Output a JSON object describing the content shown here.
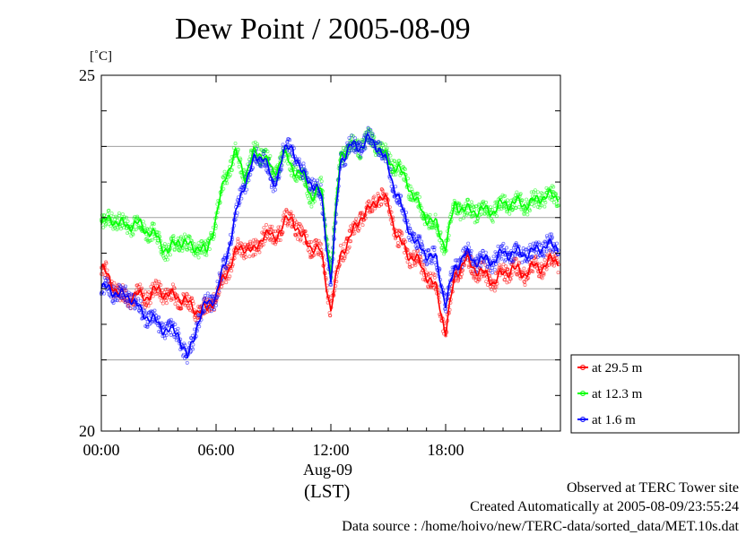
{
  "header": {
    "title": "Dew Point / 2005-08-09",
    "unit": "[˚C]"
  },
  "axis": {
    "date_label": "Aug-09",
    "timezone_label": "(LST)"
  },
  "footer": {
    "line1": "Observed at TERC Tower site",
    "line2": "Created Automatically at 2005-08-09/23:55:24",
    "line3": "Data source : /home/hoivo/new/TERC-data/sorted_data/MET.10s.dat"
  },
  "chart_data": {
    "type": "line",
    "xlabel": "",
    "ylabel": "[˚C]",
    "xlim": [
      0,
      24
    ],
    "ylim": [
      20,
      25
    ],
    "x_ticks": [
      0,
      6,
      12,
      18
    ],
    "x_tick_labels": [
      "00:00",
      "06:00",
      "12:00",
      "18:00"
    ],
    "y_ticks": [
      20,
      25
    ],
    "y_tick_labels": [
      "20",
      "25"
    ],
    "grid_y": [
      21,
      22,
      23,
      24
    ],
    "legend_position": "bottom-right outside",
    "x": [
      0,
      0.5,
      1,
      1.5,
      2,
      2.5,
      3,
      3.5,
      4,
      4.5,
      5,
      5.5,
      6,
      6.5,
      7,
      7.5,
      8,
      8.5,
      9,
      9.5,
      10,
      10.5,
      11,
      11.5,
      12,
      12.5,
      13,
      13.5,
      14,
      14.5,
      15,
      15.5,
      16,
      16.5,
      17,
      17.5,
      18,
      18.5,
      19,
      19.5,
      20,
      20.5,
      21,
      21.5,
      22,
      22.5,
      23,
      23.5
    ],
    "series": [
      {
        "name": "at 29.5 m",
        "color": "#ff0000",
        "values": [
          22.3,
          22.1,
          21.9,
          21.9,
          21.9,
          21.9,
          22.0,
          21.9,
          21.9,
          21.8,
          21.7,
          21.7,
          21.9,
          22.2,
          22.5,
          22.6,
          22.5,
          22.8,
          22.7,
          22.9,
          23.0,
          22.7,
          22.6,
          22.5,
          21.7,
          22.5,
          22.7,
          23.0,
          23.1,
          23.3,
          23.2,
          22.7,
          22.5,
          22.4,
          22.2,
          22.0,
          21.4,
          22.2,
          22.4,
          22.3,
          22.2,
          22.1,
          22.2,
          22.3,
          22.2,
          22.3,
          22.3,
          22.4
        ]
      },
      {
        "name": "at 12.3 m",
        "color": "#00ff00",
        "values": [
          22.9,
          23.0,
          22.9,
          22.9,
          22.9,
          22.8,
          22.7,
          22.5,
          22.7,
          22.6,
          22.6,
          22.5,
          23.0,
          23.6,
          23.9,
          23.6,
          23.9,
          23.9,
          23.6,
          23.9,
          23.7,
          23.6,
          23.3,
          23.4,
          22.2,
          23.9,
          24.0,
          24.0,
          24.1,
          24.0,
          23.8,
          23.7,
          23.5,
          23.2,
          23.0,
          22.9,
          22.6,
          23.2,
          23.1,
          23.1,
          23.1,
          23.1,
          23.2,
          23.2,
          23.2,
          23.2,
          23.3,
          23.3
        ]
      },
      {
        "name": "at 1.6 m",
        "color": "#0000ff",
        "values": [
          22.0,
          22.0,
          21.9,
          21.9,
          21.7,
          21.6,
          21.5,
          21.4,
          21.4,
          21.0,
          21.5,
          21.8,
          21.9,
          22.4,
          23.0,
          23.5,
          23.8,
          23.9,
          23.4,
          23.9,
          24.0,
          23.6,
          23.5,
          23.3,
          22.1,
          23.8,
          24.0,
          24.0,
          24.1,
          24.0,
          23.7,
          23.3,
          22.9,
          22.6,
          22.5,
          22.4,
          21.8,
          22.3,
          22.5,
          22.4,
          22.4,
          22.4,
          22.5,
          22.5,
          22.5,
          22.5,
          22.6,
          22.6
        ]
      }
    ]
  }
}
